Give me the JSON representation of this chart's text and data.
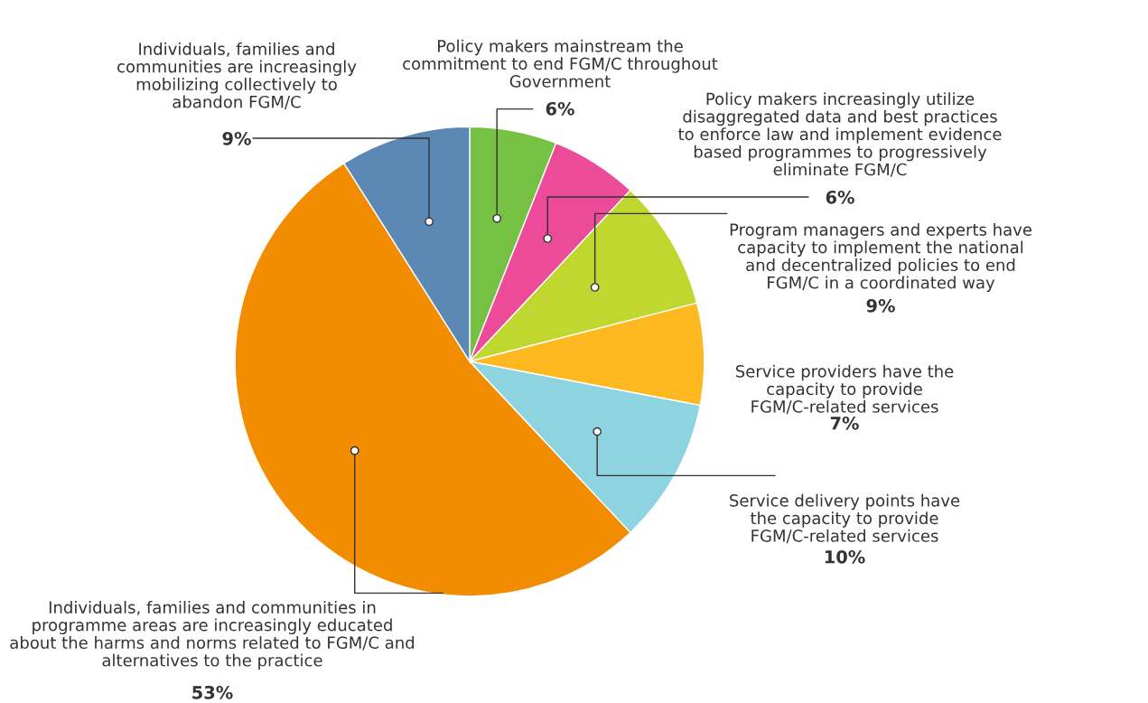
{
  "chart_data": {
    "type": "pie",
    "categories": [
      "Policy makers mainstream the commitment to end FGM/C throughout Government",
      "Policy makers increasingly utilize disaggregated data and best practices to enforce law and implement evidence based programmes to progressively eliminate FGM/C",
      "Program managers and experts have capacity to implement the national and decentralized policies to end FGM/C in a coordinated way",
      "Service providers have the capacity to provide FGM/C-related services",
      "Service delivery points have the capacity to provide FGM/C-related services",
      "Individuals, families and communities in programme areas are increasingly educated about the harms and norms related to FGM/C and alternatives to the practice",
      "Individuals, families and communities are increasingly mobilizing collectively to abandon FGM/C"
    ],
    "values": [
      6,
      6,
      9,
      7,
      10,
      53,
      9
    ],
    "value_labels": [
      "6%",
      "6%",
      "9%",
      "7%",
      "10%",
      "53%",
      "9%"
    ],
    "colors": [
      "#76c043",
      "#ec4b9a",
      "#c0d72f",
      "#fdb91f",
      "#8dd4e0",
      "#f28c00",
      "#5b88b5"
    ]
  }
}
